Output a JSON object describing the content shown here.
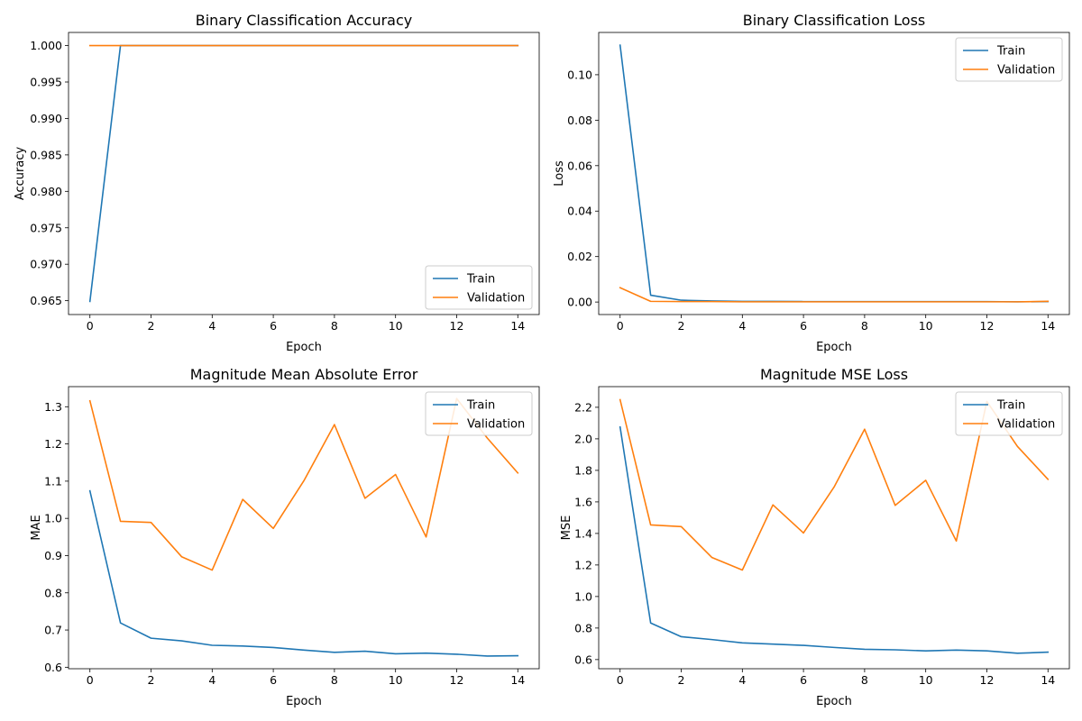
{
  "figure": {
    "background": "#ffffff"
  },
  "colors": {
    "train": "#1f77b4",
    "validation": "#ff7f0e"
  },
  "chart_data": [
    {
      "type": "line",
      "title": "Binary Classification Accuracy",
      "xlabel": "Epoch",
      "ylabel": "Accuracy",
      "xlim": [
        -0.7,
        14.7
      ],
      "ylim": [
        0.9631,
        1.0018
      ],
      "xticks": [
        0,
        2,
        4,
        6,
        8,
        10,
        12,
        14
      ],
      "yticks": [
        0.965,
        0.97,
        0.975,
        0.98,
        0.985,
        0.99,
        0.995,
        1.0
      ],
      "ytick_decimals": 3,
      "legend": "lower right",
      "grid": false,
      "x": [
        0,
        1,
        2,
        3,
        4,
        5,
        6,
        7,
        8,
        9,
        10,
        11,
        12,
        13,
        14
      ],
      "series": [
        {
          "name": "Train",
          "color": "#1f77b4",
          "values": [
            0.9649,
            1.0,
            1.0,
            1.0,
            1.0,
            1.0,
            1.0,
            1.0,
            1.0,
            1.0,
            1.0,
            1.0,
            1.0,
            1.0,
            1.0
          ]
        },
        {
          "name": "Validation",
          "color": "#ff7f0e",
          "values": [
            1.0,
            1.0,
            1.0,
            1.0,
            1.0,
            1.0,
            1.0,
            1.0,
            1.0,
            1.0,
            1.0,
            1.0,
            1.0,
            1.0,
            1.0
          ]
        }
      ]
    },
    {
      "type": "line",
      "title": "Binary Classification Loss",
      "xlabel": "Epoch",
      "ylabel": "Loss",
      "xlim": [
        -0.7,
        14.7
      ],
      "ylim": [
        -0.0055,
        0.1186
      ],
      "xticks": [
        0,
        2,
        4,
        6,
        8,
        10,
        12,
        14
      ],
      "yticks": [
        0.0,
        0.02,
        0.04,
        0.06,
        0.08,
        0.1
      ],
      "ytick_decimals": 2,
      "legend": "upper right",
      "grid": false,
      "x": [
        0,
        1,
        2,
        3,
        4,
        5,
        6,
        7,
        8,
        9,
        10,
        11,
        12,
        13,
        14
      ],
      "series": [
        {
          "name": "Train",
          "color": "#1f77b4",
          "values": [
            0.113,
            0.003,
            0.0008,
            0.0005,
            0.0003,
            0.0003,
            0.0002,
            0.0002,
            0.0002,
            0.0002,
            0.0002,
            0.0002,
            0.0002,
            0.0001,
            0.0002
          ]
        },
        {
          "name": "Validation",
          "color": "#ff7f0e",
          "values": [
            0.0063,
            0.0003,
            0.0002,
            0.0002,
            0.0001,
            0.0001,
            0.0001,
            0.0001,
            0.0001,
            0.0001,
            0.0001,
            0.0001,
            0.0001,
            0.0001,
            0.0003
          ]
        }
      ]
    },
    {
      "type": "line",
      "title": "Magnitude Mean Absolute Error",
      "xlabel": "Epoch",
      "ylabel": "MAE",
      "xlim": [
        -0.7,
        14.7
      ],
      "ylim": [
        0.596,
        1.354
      ],
      "xticks": [
        0,
        2,
        4,
        6,
        8,
        10,
        12,
        14
      ],
      "yticks": [
        0.6,
        0.7,
        0.8,
        0.9,
        1.0,
        1.1,
        1.2,
        1.3
      ],
      "ytick_decimals": 1,
      "legend": "upper right",
      "grid": false,
      "x": [
        0,
        1,
        2,
        3,
        4,
        5,
        6,
        7,
        8,
        9,
        10,
        11,
        12,
        13,
        14
      ],
      "series": [
        {
          "name": "Train",
          "color": "#1f77b4",
          "values": [
            1.074,
            0.719,
            0.678,
            0.671,
            0.659,
            0.657,
            0.653,
            0.646,
            0.64,
            0.643,
            0.636,
            0.638,
            0.635,
            0.63,
            0.631
          ]
        },
        {
          "name": "Validation",
          "color": "#ff7f0e",
          "values": [
            1.316,
            0.992,
            0.989,
            0.897,
            0.861,
            1.051,
            0.973,
            1.101,
            1.252,
            1.054,
            1.118,
            0.95,
            1.322,
            1.216,
            1.122
          ]
        }
      ]
    },
    {
      "type": "line",
      "title": "Magnitude MSE Loss",
      "xlabel": "Epoch",
      "ylabel": "MSE",
      "xlim": [
        -0.7,
        14.7
      ],
      "ylim": [
        0.542,
        2.331
      ],
      "xticks": [
        0,
        2,
        4,
        6,
        8,
        10,
        12,
        14
      ],
      "yticks": [
        0.6,
        0.8,
        1.0,
        1.2,
        1.4,
        1.6,
        1.8,
        2.0,
        2.2
      ],
      "ytick_decimals": 1,
      "legend": "upper right",
      "grid": false,
      "x": [
        0,
        1,
        2,
        3,
        4,
        5,
        6,
        7,
        8,
        9,
        10,
        11,
        12,
        13,
        14
      ],
      "series": [
        {
          "name": "Train",
          "color": "#1f77b4",
          "values": [
            2.075,
            0.832,
            0.745,
            0.727,
            0.706,
            0.698,
            0.69,
            0.677,
            0.665,
            0.662,
            0.655,
            0.66,
            0.655,
            0.64,
            0.647
          ]
        },
        {
          "name": "Validation",
          "color": "#ff7f0e",
          "values": [
            2.248,
            1.454,
            1.443,
            1.248,
            1.168,
            1.581,
            1.403,
            1.694,
            2.061,
            1.578,
            1.737,
            1.352,
            2.237,
            1.952,
            1.743
          ]
        }
      ]
    }
  ]
}
